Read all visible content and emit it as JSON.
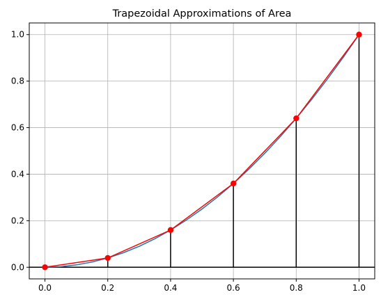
{
  "chart_data": {
    "type": "line",
    "title": "Trapezoidal Approximations of Area",
    "xlabel": "",
    "ylabel": "",
    "xlim": [
      -0.05,
      1.05
    ],
    "ylim": [
      -0.05,
      1.05
    ],
    "xticks": [
      0.0,
      0.2,
      0.4,
      0.6,
      0.8,
      1.0
    ],
    "xtick_labels": [
      "0.0",
      "0.2",
      "0.4",
      "0.6",
      "0.8",
      "1.0"
    ],
    "yticks": [
      0.0,
      0.2,
      0.4,
      0.6,
      0.8,
      1.0
    ],
    "ytick_labels": [
      "0.0",
      "0.2",
      "0.4",
      "0.6",
      "0.8",
      "1.0"
    ],
    "grid": true,
    "curve": {
      "function": "x^2",
      "x": [
        0.0,
        0.05,
        0.1,
        0.15,
        0.2,
        0.25,
        0.3,
        0.35,
        0.4,
        0.45,
        0.5,
        0.55,
        0.6,
        0.65,
        0.7,
        0.75,
        0.8,
        0.85,
        0.9,
        0.95,
        1.0
      ],
      "y": [
        0.0,
        0.0025,
        0.01,
        0.0225,
        0.04,
        0.0625,
        0.09,
        0.1225,
        0.16,
        0.2025,
        0.25,
        0.3025,
        0.36,
        0.4225,
        0.49,
        0.5625,
        0.64,
        0.7225,
        0.81,
        0.9025,
        1.0
      ],
      "color": "#1f77b4"
    },
    "trapezoid_points": {
      "x": [
        0.0,
        0.2,
        0.4,
        0.6,
        0.8,
        1.0
      ],
      "y": [
        0.0,
        0.04,
        0.16,
        0.36,
        0.64,
        1.0
      ],
      "color": "#ff0000"
    },
    "vertical_lines": {
      "x": [
        0.2,
        0.4,
        0.6,
        0.8,
        1.0
      ],
      "y": [
        0.04,
        0.16,
        0.36,
        0.64,
        1.0
      ],
      "color": "#000000"
    },
    "baseline": {
      "y": 0.0,
      "color": "#000000"
    },
    "grid_color": "#b0b0b0"
  }
}
